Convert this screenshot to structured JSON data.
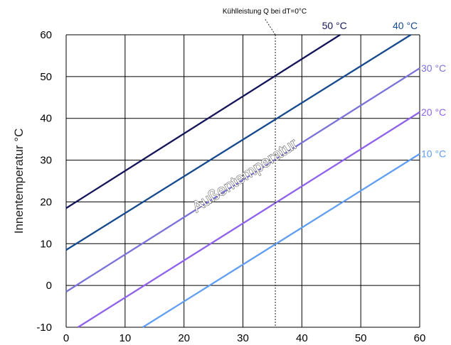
{
  "chart_data": {
    "type": "line",
    "xlabel": "",
    "ylabel": "Innentemperatur °C",
    "xlim": [
      0,
      60
    ],
    "ylim": [
      -10,
      60
    ],
    "xticks": [
      "0",
      "10",
      "20",
      "30",
      "40",
      "50",
      "60"
    ],
    "yticks": [
      "-10",
      "0",
      "10",
      "20",
      "30",
      "40",
      "50",
      "60"
    ],
    "grid": true,
    "series": [
      {
        "name": "50 °C",
        "color": "#14145a",
        "x": [
          0,
          46.5
        ],
        "y": [
          18.5,
          60
        ]
      },
      {
        "name": "40 °C",
        "color": "#164a8e",
        "x": [
          0,
          58.5
        ],
        "y": [
          8.5,
          60
        ]
      },
      {
        "name": "30 °C",
        "color": "#7a72d8",
        "x": [
          0,
          60
        ],
        "y": [
          -1.5,
          52
        ]
      },
      {
        "name": "20 °C",
        "color": "#8f62ec",
        "x": [
          2,
          60
        ],
        "y": [
          -10,
          41.5
        ]
      },
      {
        "name": "10 °C",
        "color": "#5f9ef0",
        "x": [
          13,
          60
        ],
        "y": [
          -10,
          31.5
        ]
      }
    ],
    "vertical_line": {
      "x": 35.5,
      "label": "Kühlleistung Q bei dT=0°C"
    },
    "diagonal_label": "Außentemperatur"
  }
}
